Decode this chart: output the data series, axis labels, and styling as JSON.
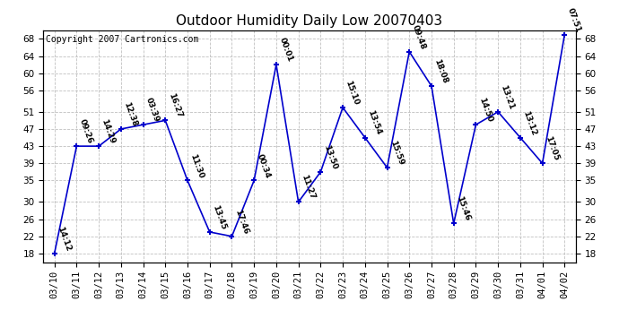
{
  "title": "Outdoor Humidity Daily Low 20070403",
  "copyright": "Copyright 2007 Cartronics.com",
  "dates": [
    "03/10",
    "03/11",
    "03/12",
    "03/13",
    "03/14",
    "03/15",
    "03/16",
    "03/17",
    "03/18",
    "03/19",
    "03/20",
    "03/21",
    "03/22",
    "03/23",
    "03/24",
    "03/25",
    "03/26",
    "03/27",
    "03/28",
    "03/29",
    "03/30",
    "03/31",
    "04/01",
    "04/02"
  ],
  "values": [
    18,
    43,
    43,
    47,
    48,
    49,
    35,
    23,
    22,
    35,
    62,
    30,
    37,
    52,
    45,
    38,
    65,
    57,
    25,
    48,
    51,
    45,
    39,
    69
  ],
  "labels": [
    "14:12",
    "09:26",
    "14:29",
    "12:38",
    "03:39",
    "16:27",
    "11:30",
    "13:45",
    "17:46",
    "00:34",
    "00:01",
    "11:27",
    "13:50",
    "15:10",
    "13:54",
    "15:59",
    "09:48",
    "18:08",
    "15:46",
    "14:50",
    "13:21",
    "13:12",
    "17:05",
    "07:51"
  ],
  "yticks": [
    18,
    22,
    26,
    30,
    35,
    39,
    43,
    47,
    51,
    56,
    60,
    64,
    68
  ],
  "ylim": [
    16,
    70
  ],
  "line_color": "#0000cc",
  "marker_color": "#0000cc",
  "bg_color": "#ffffff",
  "plot_bg_color": "#ffffff",
  "grid_color": "#c0c0c0",
  "title_fontsize": 11,
  "label_fontsize": 6.5,
  "tick_fontsize": 7.5,
  "copyright_fontsize": 7
}
